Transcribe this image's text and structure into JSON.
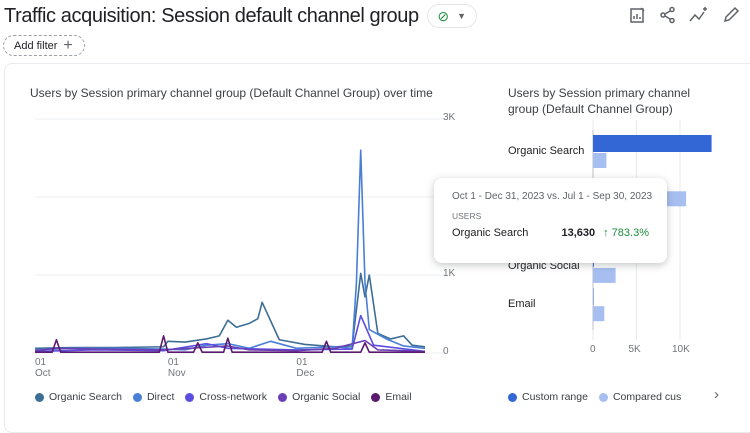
{
  "header": {
    "title": "Traffic acquisition: Session default channel group",
    "status_icon": "check-circle-icon",
    "actions": [
      "customize-report-icon",
      "share-icon",
      "insights-icon",
      "edit-icon"
    ]
  },
  "filter": {
    "label": "Add filter",
    "icon": "plus-icon"
  },
  "line_chart_title": "Users by Session primary channel group (Default Channel Group) over time",
  "bar_chart_title": "Users by Session primary channel group (Default Channel Group)",
  "tooltip": {
    "range": "Oct 1 - Dec 31, 2023 vs. Jul 1 - Sep 30, 2023",
    "metric": "USERS",
    "channel": "Organic Search",
    "value": "13,630",
    "change": "↑ 783.3%"
  },
  "chart_data": [
    {
      "type": "line",
      "title": "Users by Session primary channel group (Default Channel Group) over time",
      "x_ticks": [
        {
          "date": "2023-10-01",
          "day": "01",
          "month": "Oct"
        },
        {
          "date": "2023-11-01",
          "day": "01",
          "month": "Nov"
        },
        {
          "date": "2023-12-01",
          "day": "01",
          "month": "Dec"
        }
      ],
      "xlim": [
        "2023-10-01",
        "2023-12-31"
      ],
      "ylim": [
        0,
        3000
      ],
      "y_ticks": [
        "3K",
        "1K",
        "0"
      ],
      "grid": true,
      "legend": "bottom",
      "series": [
        {
          "name": "Organic Search",
          "color": "#3d6e96",
          "points": [
            [
              "2023-10-01",
              60
            ],
            [
              "2023-10-10",
              70
            ],
            [
              "2023-10-20",
              70
            ],
            [
              "2023-10-31",
              80
            ],
            [
              "2023-11-01",
              150
            ],
            [
              "2023-11-05",
              140
            ],
            [
              "2023-11-10",
              180
            ],
            [
              "2023-11-13",
              220
            ],
            [
              "2023-11-15",
              420
            ],
            [
              "2023-11-17",
              330
            ],
            [
              "2023-11-20",
              380
            ],
            [
              "2023-11-22",
              440
            ],
            [
              "2023-11-23",
              650
            ],
            [
              "2023-11-27",
              170
            ],
            [
              "2023-12-03",
              110
            ],
            [
              "2023-12-10",
              80
            ],
            [
              "2023-12-14",
              90
            ],
            [
              "2023-12-16",
              1020
            ],
            [
              "2023-12-17",
              720
            ],
            [
              "2023-12-18",
              1000
            ],
            [
              "2023-12-20",
              250
            ],
            [
              "2023-12-23",
              180
            ],
            [
              "2023-12-26",
              220
            ],
            [
              "2023-12-28",
              100
            ],
            [
              "2023-12-31",
              80
            ]
          ]
        },
        {
          "name": "Direct",
          "color": "#4a7fd6",
          "points": [
            [
              "2023-10-01",
              40
            ],
            [
              "2023-10-10",
              60
            ],
            [
              "2023-10-20",
              60
            ],
            [
              "2023-10-31",
              50
            ],
            [
              "2023-11-05",
              40
            ],
            [
              "2023-11-10",
              100
            ],
            [
              "2023-11-15",
              120
            ],
            [
              "2023-11-20",
              60
            ],
            [
              "2023-11-25",
              150
            ],
            [
              "2023-12-01",
              60
            ],
            [
              "2023-12-10",
              80
            ],
            [
              "2023-12-14",
              60
            ],
            [
              "2023-12-15",
              900
            ],
            [
              "2023-12-16",
              2600
            ],
            [
              "2023-12-17",
              900
            ],
            [
              "2023-12-18",
              300
            ],
            [
              "2023-12-22",
              180
            ],
            [
              "2023-12-26",
              90
            ],
            [
              "2023-12-31",
              60
            ]
          ]
        },
        {
          "name": "Cross-network",
          "color": "#5a4de0",
          "points": [
            [
              "2023-10-01",
              20
            ],
            [
              "2023-10-15",
              40
            ],
            [
              "2023-10-31",
              30
            ],
            [
              "2023-11-10",
              120
            ],
            [
              "2023-11-15",
              60
            ],
            [
              "2023-12-01",
              40
            ],
            [
              "2023-12-14",
              50
            ],
            [
              "2023-12-16",
              480
            ],
            [
              "2023-12-19",
              100
            ],
            [
              "2023-12-31",
              20
            ]
          ]
        },
        {
          "name": "Organic Social",
          "color": "#6a3fb5",
          "points": [
            [
              "2023-10-01",
              30
            ],
            [
              "2023-10-06",
              60
            ],
            [
              "2023-10-15",
              50
            ],
            [
              "2023-10-31",
              40
            ],
            [
              "2023-11-15",
              90
            ],
            [
              "2023-11-20",
              40
            ],
            [
              "2023-12-01",
              30
            ],
            [
              "2023-12-10",
              60
            ],
            [
              "2023-12-17",
              160
            ],
            [
              "2023-12-20",
              40
            ],
            [
              "2023-12-31",
              20
            ]
          ]
        },
        {
          "name": "Email",
          "color": "#5b1a6e",
          "points": [
            [
              "2023-10-01",
              10
            ],
            [
              "2023-10-05",
              10
            ],
            [
              "2023-10-06",
              170
            ],
            [
              "2023-10-07",
              10
            ],
            [
              "2023-10-30",
              10
            ],
            [
              "2023-10-31",
              220
            ],
            [
              "2023-11-01",
              10
            ],
            [
              "2023-11-07",
              10
            ],
            [
              "2023-11-08",
              130
            ],
            [
              "2023-11-09",
              10
            ],
            [
              "2023-11-14",
              10
            ],
            [
              "2023-11-15",
              190
            ],
            [
              "2023-11-16",
              10
            ],
            [
              "2023-12-07",
              10
            ],
            [
              "2023-12-08",
              150
            ],
            [
              "2023-12-09",
              10
            ],
            [
              "2023-12-16",
              10
            ],
            [
              "2023-12-17",
              130
            ],
            [
              "2023-12-18",
              10
            ],
            [
              "2023-12-31",
              10
            ]
          ]
        }
      ]
    },
    {
      "type": "bar",
      "orientation": "horizontal",
      "title": "Users by Session primary channel group (Default Channel Group)",
      "categories": [
        "Organic Search",
        "",
        "",
        "Organic Social",
        "Email"
      ],
      "x_ticks": [
        "0",
        "5K",
        "10K"
      ],
      "xlim": [
        0,
        15000
      ],
      "legend": "bottom",
      "series": [
        {
          "name": "Custom range",
          "color": "#3367d6",
          "values": [
            13630,
            null,
            null,
            100,
            0
          ]
        },
        {
          "name": "Compared custom range",
          "legend_label": "Compared cus",
          "color": "#a7bff0",
          "values": [
            1540,
            10700,
            null,
            2600,
            1300
          ]
        }
      ]
    }
  ]
}
